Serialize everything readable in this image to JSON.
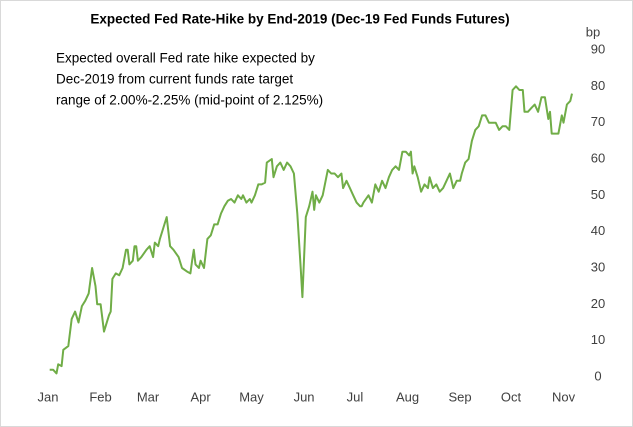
{
  "chart_data": {
    "type": "line",
    "title": "Expected Fed Rate-Hike by End-2019 (Dec-19 Fed Funds Futures)",
    "y_axis_label": "bp",
    "annotation": [
      "Expected overall Fed rate hike expected by",
      "Dec-2019 from current funds rate target",
      "range of 2.00%-2.25% (mid-point of 2.125%)"
    ],
    "x": [
      1,
      3,
      5,
      6,
      8,
      9,
      12,
      14,
      16,
      18,
      20,
      22,
      24,
      26,
      28,
      29,
      31,
      33,
      36,
      37,
      38,
      40,
      42,
      44,
      46,
      47,
      48,
      50,
      51,
      52,
      53,
      55,
      58,
      60,
      62,
      63,
      65,
      66,
      68,
      70,
      71,
      72,
      74,
      77,
      79,
      82,
      84,
      85,
      86,
      87,
      89,
      90,
      92,
      94,
      96,
      98,
      100,
      102,
      104,
      106,
      108,
      110,
      112,
      114,
      115,
      117,
      119,
      120,
      122,
      124,
      126,
      128,
      129,
      132,
      133,
      135,
      137,
      139,
      141,
      143,
      145,
      147,
      149,
      150,
      152,
      154,
      156,
      157,
      158,
      160,
      162,
      165,
      167,
      169,
      171,
      173,
      174,
      176,
      178,
      180,
      182,
      184,
      185,
      186,
      189,
      191,
      193,
      195,
      197,
      199,
      201,
      203,
      205,
      207,
      209,
      211,
      213,
      214,
      215,
      216,
      218,
      220,
      222,
      224,
      225,
      227,
      229,
      231,
      233,
      235,
      237,
      239,
      241,
      243,
      244,
      246,
      248,
      250,
      252,
      254,
      256,
      258,
      260,
      262,
      264,
      266,
      268,
      270,
      272,
      274,
      276,
      278,
      280,
      281,
      283,
      285,
      287,
      289,
      291,
      293,
      295,
      296,
      297,
      299,
      301,
      303,
      304,
      306,
      308,
      309
    ],
    "series": [
      {
        "name": "Dec-19 Fed Funds Futures",
        "color": "#70ad47",
        "values": [
          2,
          2,
          1,
          3.5,
          3,
          7.5,
          8.5,
          16,
          18,
          15,
          19.5,
          21,
          23,
          30,
          25,
          20,
          20,
          12.5,
          17,
          18,
          27,
          28.5,
          28,
          30,
          35,
          35,
          31,
          32,
          36,
          36,
          32,
          33,
          35,
          36,
          33,
          37,
          36,
          38,
          41,
          44,
          40,
          36,
          35,
          33,
          30,
          29,
          28.5,
          32,
          35,
          31,
          30,
          32,
          30,
          38,
          39,
          42,
          42,
          45,
          47,
          48.5,
          49,
          48,
          50,
          49,
          50,
          48,
          49,
          48,
          50,
          53,
          53,
          53.5,
          59,
          60,
          55,
          58,
          59,
          57,
          59,
          58,
          56,
          45,
          30,
          22,
          44,
          47,
          51,
          46,
          50,
          48,
          50,
          57,
          56,
          56,
          55,
          56,
          52,
          54,
          52,
          50,
          48,
          47,
          47,
          48,
          50,
          48,
          53,
          51,
          54,
          52,
          55,
          57,
          58,
          57,
          62,
          62,
          61,
          62,
          56,
          58,
          55,
          51,
          53,
          52,
          55,
          52,
          53,
          51,
          52,
          54,
          56,
          52,
          54,
          54,
          56,
          59,
          60,
          65,
          68,
          69,
          72,
          72,
          70,
          70,
          70,
          68,
          69,
          69,
          68,
          79,
          80,
          79,
          79,
          73,
          73,
          74,
          75,
          73,
          77,
          77,
          71,
          73,
          67,
          67,
          67,
          72,
          70,
          75,
          76,
          78
        ]
      }
    ],
    "xlim": [
      0,
      309
    ],
    "xticks": [
      {
        "value": 0,
        "label": "Jan"
      },
      {
        "value": 31,
        "label": "Feb"
      },
      {
        "value": 59,
        "label": "Mar"
      },
      {
        "value": 90,
        "label": "Apr"
      },
      {
        "value": 120,
        "label": "May"
      },
      {
        "value": 151,
        "label": "Jun"
      },
      {
        "value": 181,
        "label": "Jul"
      },
      {
        "value": 212,
        "label": "Aug"
      },
      {
        "value": 243,
        "label": "Sep"
      },
      {
        "value": 273,
        "label": "Oct"
      },
      {
        "value": 304,
        "label": "Nov"
      }
    ],
    "ylim": [
      0,
      90
    ],
    "yticks": [
      0,
      10,
      20,
      30,
      40,
      50,
      60,
      70,
      80,
      90
    ],
    "y_axis_side": "right",
    "grid": false
  }
}
